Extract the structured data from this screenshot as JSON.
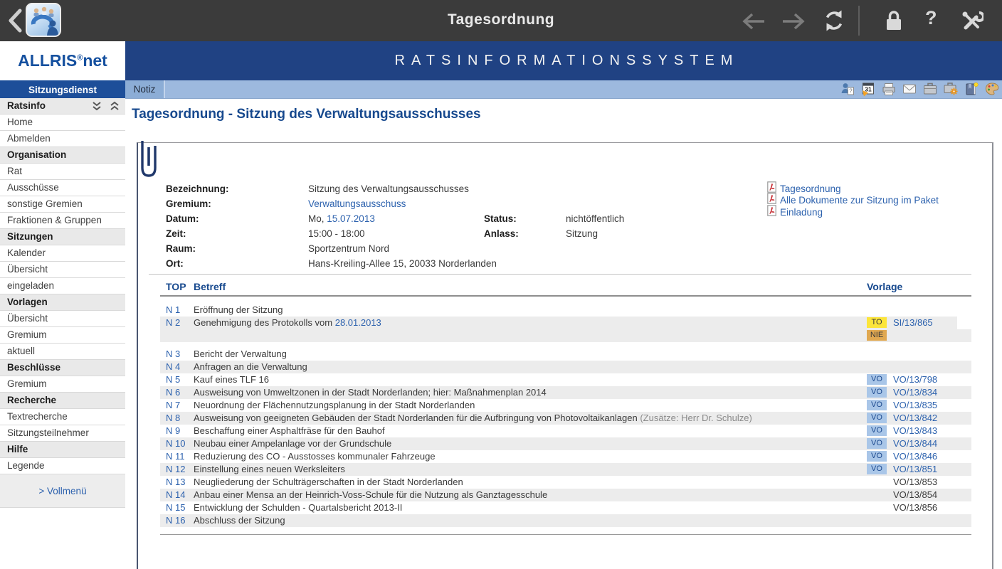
{
  "topbar": {
    "title": "Tagesordnung",
    "icons": [
      "back-chevron-icon",
      "app-logo-icon",
      "nav-back-icon",
      "nav-forward-icon",
      "refresh-icon",
      "lock-icon",
      "help-icon",
      "tools-icon"
    ]
  },
  "brand": {
    "name": "ALLRIS",
    "reg": "®",
    "suffix": "net"
  },
  "banner": {
    "text": "RATSINFORMATIONSSYSTEM"
  },
  "tabs": {
    "sitzungsdienst": "Sitzungsdienst",
    "notiz": "Notiz"
  },
  "notiz_toolbar": {
    "icons": [
      "user-note-icon",
      "calendar-icon",
      "print-icon",
      "mail-icon",
      "briefcase-icon",
      "briefcase-settings-icon",
      "bookmark-book-icon",
      "palette-icon"
    ]
  },
  "sidebar": {
    "items": [
      {
        "label": "Ratsinfo",
        "type": "header"
      },
      {
        "label": "Home"
      },
      {
        "label": "Abmelden"
      },
      {
        "label": "Organisation",
        "type": "section"
      },
      {
        "label": "Rat"
      },
      {
        "label": "Ausschüsse"
      },
      {
        "label": "sonstige Gremien"
      },
      {
        "label": "Fraktionen & Gruppen"
      },
      {
        "label": "Sitzungen",
        "type": "section"
      },
      {
        "label": "Kalender"
      },
      {
        "label": "Übersicht"
      },
      {
        "label": "eingeladen"
      },
      {
        "label": "Vorlagen",
        "type": "section"
      },
      {
        "label": "Übersicht"
      },
      {
        "label": "Gremium"
      },
      {
        "label": "aktuell"
      },
      {
        "label": "Beschlüsse",
        "type": "section"
      },
      {
        "label": "Gremium"
      },
      {
        "label": "Recherche",
        "type": "section"
      },
      {
        "label": "Textrecherche"
      },
      {
        "label": "Sitzungsteilnehmer"
      },
      {
        "label": "Hilfe",
        "type": "section"
      },
      {
        "label": "Legende"
      }
    ],
    "vollmenue": "> Vollmenü"
  },
  "page": {
    "title": "Tagesordnung - Sitzung des Verwaltungsausschusses"
  },
  "details": {
    "rows": [
      {
        "label": "Bezeichnung:",
        "value": "Sitzung des Verwaltungsausschusses"
      },
      {
        "label": "Gremium:",
        "link": "Verwaltungsausschuss"
      },
      {
        "label": "Datum:",
        "prefix": "Mo, ",
        "link": "15.07.2013"
      },
      {
        "label": "Zeit:",
        "value": "15:00 - 18:00"
      },
      {
        "label": "Raum:",
        "value": "Sportzentrum Nord"
      },
      {
        "label": "Ort:",
        "value": "Hans-Kreiling-Allee 15, 20033 Norderlanden"
      }
    ],
    "side": [
      {
        "label": "Status:",
        "value": "nichtöffentlich",
        "align_row": 2
      },
      {
        "label": "Anlass:",
        "value": "Sitzung",
        "align_row": 3
      }
    ]
  },
  "pdf_links": [
    {
      "label": "Tagesordnung"
    },
    {
      "label": "Alle Dokumente zur Sitzung im Paket"
    },
    {
      "label": "Einladung"
    }
  ],
  "table": {
    "headers": {
      "top": "TOP",
      "betreff": "Betreff",
      "vorlage": "Vorlage"
    },
    "rows": [
      {
        "top": "N 1",
        "text": "Eröffnung der Sitzung"
      },
      {
        "top": "N 2",
        "text": "Genehmigung des Protokolls vom ",
        "text_link": "28.01.2013",
        "shaded": true,
        "short": true,
        "badge": {
          "label": "TO",
          "type": "yellow"
        },
        "vorlage": {
          "text": "SI/13/865",
          "link": true
        }
      },
      {
        "shaded": true,
        "badge": {
          "label": "NIE",
          "type": "orange"
        },
        "gap_after": true
      },
      {
        "top": "N 3",
        "text": "Bericht der Verwaltung"
      },
      {
        "top": "N 4",
        "text": "Anfragen an die Verwaltung",
        "shaded": true
      },
      {
        "top": "N 5",
        "text": "Kauf eines TLF 16",
        "badge": {
          "label": "VO",
          "type": "blue"
        },
        "vorlage": {
          "text": "VO/13/798",
          "link": true
        }
      },
      {
        "top": "N 6",
        "text": "Ausweisung von Umweltzonen in der Stadt Norderlanden; hier: Maßnahmenplan 2014",
        "shaded": true,
        "badge": {
          "label": "VO",
          "type": "blue"
        },
        "vorlage": {
          "text": "VO/13/834",
          "link": true
        }
      },
      {
        "top": "N 7",
        "text": "Neuordnung der Flächennutzungsplanung in der Stadt Norderlanden",
        "badge": {
          "label": "VO",
          "type": "blue"
        },
        "vorlage": {
          "text": "VO/13/835",
          "link": true
        }
      },
      {
        "top": "N 8",
        "text": "Ausweisung von geeigneten Gebäuden der Stadt Norderlanden für die Aufbringung von Photovoltaikanlagen ",
        "note": "(Zusätze: Herr Dr. Schulze)",
        "shaded": true,
        "badge": {
          "label": "VO",
          "type": "blue"
        },
        "vorlage": {
          "text": "VO/13/842",
          "link": true
        }
      },
      {
        "top": "N 9",
        "text": "Beschaffung einer Asphaltfräse für den Bauhof",
        "badge": {
          "label": "VO",
          "type": "blue"
        },
        "vorlage": {
          "text": "VO/13/843",
          "link": true
        }
      },
      {
        "top": "N 10",
        "text": "Neubau einer Ampelanlage vor der Grundschule",
        "shaded": true,
        "badge": {
          "label": "VO",
          "type": "blue"
        },
        "vorlage": {
          "text": "VO/13/844",
          "link": true
        }
      },
      {
        "top": "N 11",
        "text": "Reduzierung des CO - Ausstosses kommunaler Fahrzeuge",
        "badge": {
          "label": "VO",
          "type": "blue"
        },
        "vorlage": {
          "text": "VO/13/846",
          "link": true
        }
      },
      {
        "top": "N 12",
        "text": "Einstellung eines neuen Werksleiters",
        "shaded": true,
        "badge": {
          "label": "VO",
          "type": "blue"
        },
        "vorlage": {
          "text": "VO/13/851",
          "link": true
        }
      },
      {
        "top": "N 13",
        "text": "Neugliederung der Schulträgerschaften in der Stadt Norderlanden",
        "vorlage": {
          "text": "VO/13/853",
          "link": false
        }
      },
      {
        "top": "N 14",
        "text": "Anbau einer Mensa an der Heinrich-Voss-Schule für die Nutzung als Ganztagesschule",
        "shaded": true,
        "vorlage": {
          "text": "VO/13/854",
          "link": false
        }
      },
      {
        "top": "N 15",
        "text": "Entwicklung der Schulden - Quartalsbericht 2013-II",
        "vorlage": {
          "text": "VO/13/856",
          "link": false
        }
      },
      {
        "top": "N 16",
        "text": "Abschluss der Sitzung",
        "shaded": true
      }
    ]
  },
  "colors": {
    "topbar_bg": "#3b3b3b",
    "banner_bg": "#204283",
    "menu_bar_bg": "#1d4e99",
    "tabbar_bg": "#9db9de",
    "link": "#2d62ae",
    "heading_blue": "#17498e",
    "row_shaded": "#ececec",
    "badge_to": "#fce53a",
    "badge_nie": "#e0a851",
    "badge_vo": "#a9c6e8"
  }
}
